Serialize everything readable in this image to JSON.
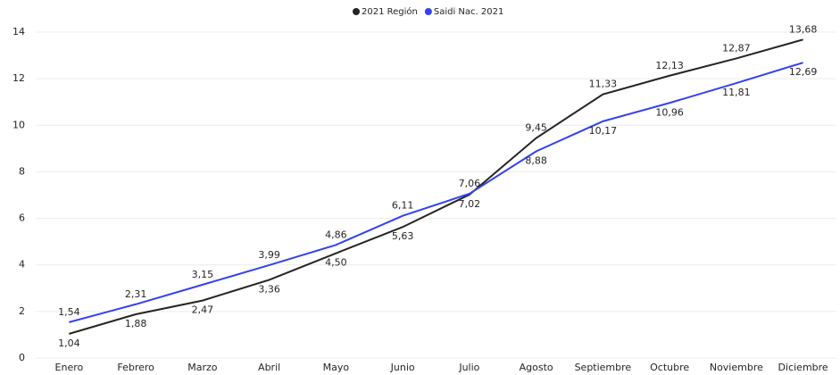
{
  "chart_data": {
    "type": "line",
    "categories": [
      "Enero",
      "Febrero",
      "Marzo",
      "Abril",
      "Mayo",
      "Junio",
      "Julio",
      "Agosto",
      "Septiembre",
      "Octubre",
      "Noviembre",
      "Diciembre"
    ],
    "series": [
      {
        "name": "2021 Región",
        "color": "#252423",
        "values": [
          1.04,
          1.88,
          2.47,
          3.36,
          4.5,
          5.63,
          7.02,
          9.45,
          11.33,
          12.13,
          12.87,
          13.68
        ],
        "value_labels": [
          "1,04",
          "1,88",
          "2,47",
          "3,36",
          "4,50",
          "5,63",
          "7,02",
          "9,45",
          "11,33",
          "12,13",
          "12,87",
          "13,68"
        ]
      },
      {
        "name": "Saidi Nac. 2021",
        "color": "#3341f0",
        "values": [
          1.54,
          2.31,
          3.15,
          3.99,
          4.86,
          6.11,
          7.06,
          8.88,
          10.17,
          10.96,
          11.81,
          12.69
        ],
        "value_labels": [
          "1,54",
          "2,31",
          "3,15",
          "3,99",
          "4,86",
          "6,11",
          "7,06",
          "8,88",
          "10,17",
          "10,96",
          "11,81",
          "12,69"
        ]
      }
    ],
    "ylim": [
      0,
      14
    ],
    "yticks": [
      0,
      2,
      4,
      6,
      8,
      10,
      12,
      14
    ],
    "grid": true,
    "legend": "top"
  }
}
